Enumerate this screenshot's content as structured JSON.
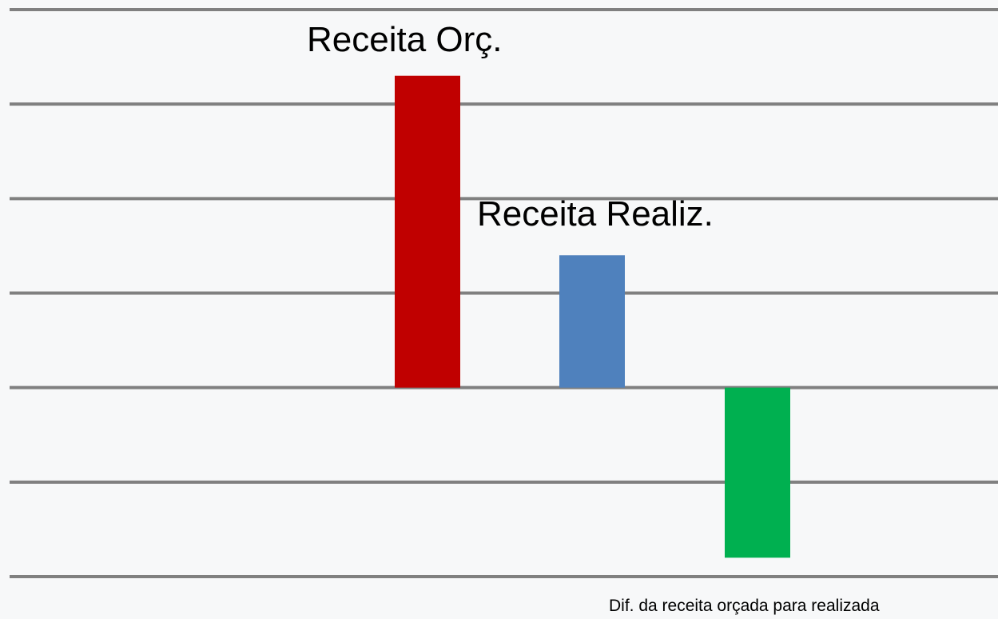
{
  "chart_data": {
    "type": "bar",
    "categories": [
      "Receita Orç.",
      "Receita Realiz.",
      "Dif. da receita orçada para realizada"
    ],
    "values": [
      3.3,
      1.4,
      -1.8
    ],
    "ylim": [
      -2,
      4
    ],
    "grid": true,
    "legend": "none",
    "colors": [
      "#c00000",
      "#4f81bd",
      "#00b050"
    ],
    "gridline_color": "#808080",
    "background": "#f7f8f9"
  }
}
